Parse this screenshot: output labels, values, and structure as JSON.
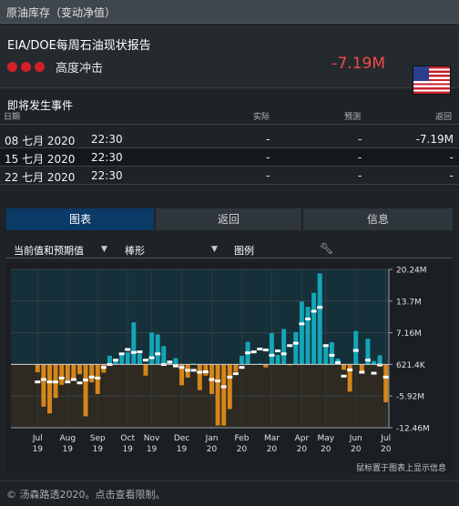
{
  "window": {
    "title": "原油库存（变动净值）"
  },
  "header": {
    "event_name": "EIA/DOE每周石油现状报告",
    "impact_label": "高度冲击",
    "value": "-7.19M",
    "flag_icon": "us-flag-icon",
    "impact_color": "#d31f28",
    "value_color": "#f04a4a"
  },
  "events": {
    "title": "即将发生事件",
    "columns": {
      "date": "日期",
      "actual": "实际",
      "forecast": "预测",
      "previous": "返回"
    },
    "rows": [
      {
        "date": "08 七月 2020",
        "time": "22:30",
        "actual": "-",
        "forecast": "-",
        "previous": "-7.19M"
      },
      {
        "date": "15 七月 2020",
        "time": "22:30",
        "actual": "-",
        "forecast": "-",
        "previous": "-"
      },
      {
        "date": "22 七月 2020",
        "time": "22:30",
        "actual": "-",
        "forecast": "-",
        "previous": "-"
      }
    ]
  },
  "tabs": [
    {
      "label": "图表",
      "active": true
    },
    {
      "label": "返回",
      "active": false
    },
    {
      "label": "信息",
      "active": false
    }
  ],
  "toolbar": {
    "value_select": "当前值和预期值",
    "chart_type_select": "棒形",
    "legend_label": "图例"
  },
  "chart_footnote": "鼠标置于图表上显示信息",
  "copyright": "© 汤森路透2020。点击查看限制。",
  "chart_data": {
    "type": "bar",
    "y_ticks": [
      "20.24M",
      "13.7M",
      "7.16M",
      "621.4K",
      "-5.92M",
      "-12.46M"
    ],
    "ylim": [
      -12.46,
      20.24
    ],
    "x_ticks": [
      {
        "month": "Jul",
        "year": "19"
      },
      {
        "month": "Aug",
        "year": "19"
      },
      {
        "month": "Sep",
        "year": "19"
      },
      {
        "month": "Oct",
        "year": "19"
      },
      {
        "month": "Nov",
        "year": "19"
      },
      {
        "month": "Dec",
        "year": "19"
      },
      {
        "month": "Jan",
        "year": "20"
      },
      {
        "month": "Feb",
        "year": "20"
      },
      {
        "month": "Mar",
        "year": "20"
      },
      {
        "month": "Apr",
        "year": "20"
      },
      {
        "month": "May",
        "year": "20"
      },
      {
        "month": "Jun",
        "year": "20"
      },
      {
        "month": "Jul",
        "year": "20"
      }
    ],
    "actual": [
      -1.0,
      -8.1,
      -9.5,
      -6.3,
      -3.6,
      -2.7,
      -2.4,
      -1.4,
      -10.1,
      -3.1,
      -5.5,
      -1.1,
      2.4,
      1.4,
      2.9,
      3.1,
      9.3,
      2.8,
      -1.7,
      7.2,
      6.8,
      4.4,
      1.4,
      1.9,
      -3.7,
      -2.1,
      0.8,
      -4.7,
      -1.7,
      -5.5,
      -12.0,
      -12.0,
      -8.6,
      -0.9,
      2.4,
      5.3,
      0.7,
      0.8,
      0.0,
      7.1,
      2.6,
      7.9,
      0.5,
      7.3,
      13.6,
      12.5,
      15.4,
      19.4,
      4.3,
      5.2,
      1.8,
      -0.5,
      -5.0,
      7.5,
      -1.2,
      5.9,
      1.3,
      2.5,
      -7.2
    ],
    "forecast": [
      -3.0,
      -2.5,
      -3.0,
      -3.0,
      -2.2,
      -3.0,
      -2.5,
      -3.2,
      -2.6,
      -2.0,
      -2.2,
      0.0,
      0.6,
      1.5,
      2.8,
      3.7,
      3.1,
      3.2,
      1.5,
      2.0,
      2.8,
      0.6,
      1.1,
      0.3,
      0.0,
      -0.6,
      -0.6,
      -1.0,
      -0.9,
      -2.5,
      -2.8,
      -4.0,
      -2.0,
      -1.3,
      0.0,
      3.0,
      3.2,
      3.8,
      3.6,
      2.5,
      3.4,
      2.8,
      4.5,
      5.0,
      9.0,
      10.0,
      11.6,
      12.4,
      4.5,
      2.5,
      1.0,
      -1.8,
      -0.5,
      3.5,
      -1.0,
      1.5,
      -1.2,
      0.5,
      -2.0
    ],
    "colors": {
      "positive": "#12a6b8",
      "negative": "#d5861b",
      "forecast_marker": "#ffffff",
      "upper_bg": "#16303a",
      "lower_bg": "#2e2a21",
      "zero_line": "#cfcfcf"
    }
  }
}
